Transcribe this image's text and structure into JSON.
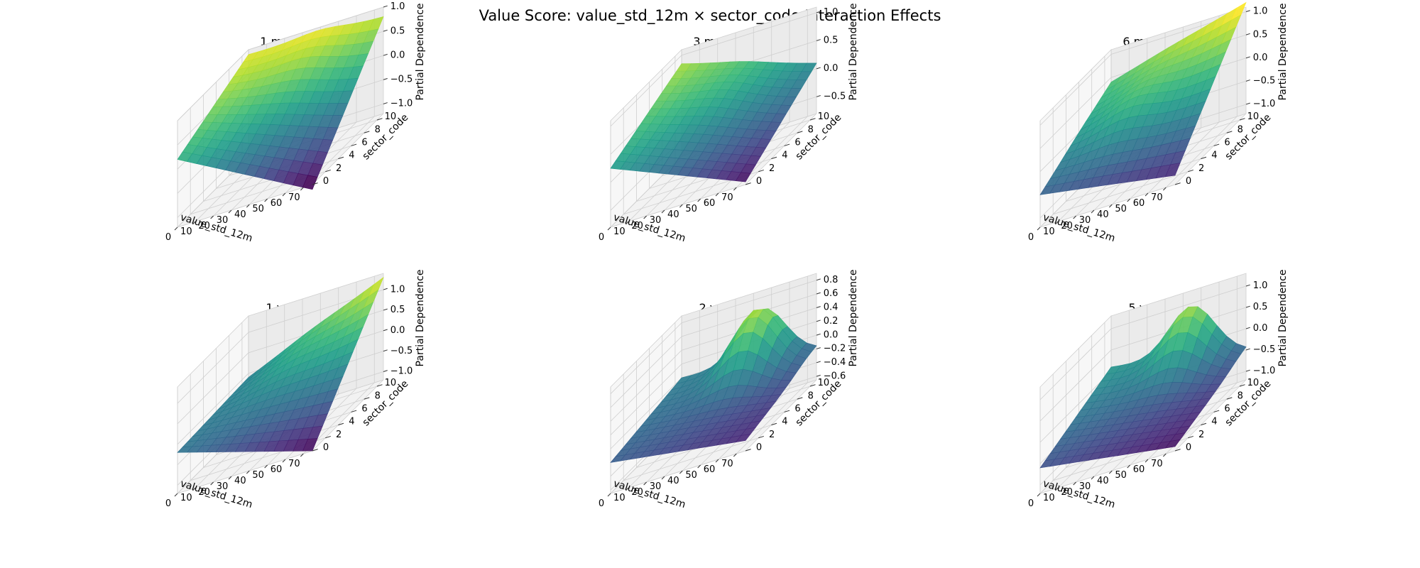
{
  "title": "Value Score: value_std_12m × sector_code Interaction Effects",
  "chart_data": {
    "type": "surface3d",
    "suptitle": "Value Score: value_std_12m × sector_code Interaction Effects",
    "xlabel": "value_std_12m",
    "ylabel": "sector_code",
    "zlabel": "Partial Dependence",
    "colormap": "viridis",
    "x_ticks": [
      0,
      10,
      20,
      30,
      40,
      50,
      60,
      70
    ],
    "y_ticks": [
      0,
      2,
      4,
      6,
      8,
      10
    ],
    "xlim": [
      0,
      75
    ],
    "ylim": [
      0,
      11
    ],
    "panels": [
      {
        "title": "1 month",
        "z_ticks": [
          "1.0",
          "0.5",
          "0.0",
          "−0.5",
          "−1.0"
        ],
        "zlim": [
          -1.2,
          1.0
        ],
        "corners": {
          "x0y11": 0.9,
          "x75y11": 0.8,
          "x0y0": 0.2,
          "x75y0": -1.3
        },
        "bump": {
          "x": 40,
          "y": 9,
          "amp": 0.15
        }
      },
      {
        "title": "3 month",
        "z_ticks": [
          "1.0",
          "0.5",
          "0.0",
          "−0.5"
        ],
        "zlim": [
          -0.8,
          1.1
        ],
        "corners": {
          "x0y11": 0.85,
          "x75y11": 0.1,
          "x0y0": 0.25,
          "x75y0": -0.75
        },
        "bump": {
          "x": 35,
          "y": 8,
          "amp": 0.1
        }
      },
      {
        "title": "6 month",
        "z_ticks": [
          "1.0",
          "0.5",
          "0.0",
          "−0.5",
          "−1.0"
        ],
        "zlim": [
          -1.2,
          1.1
        ],
        "corners": {
          "x0y11": 0.4,
          "x75y11": 1.2,
          "x0y0": -0.5,
          "x75y0": -1.0
        },
        "bump": {
          "x": 30,
          "y": 6,
          "amp": 0.25
        }
      },
      {
        "title": "1 year",
        "z_ticks": [
          "1.0",
          "0.5",
          "0.0",
          "−0.5",
          "−1.0"
        ],
        "zlim": [
          -1.2,
          1.4
        ],
        "corners": {
          "x0y11": -0.1,
          "x75y11": 1.3,
          "x0y0": -0.2,
          "x75y0": -1.2
        },
        "bump": {
          "x": 35,
          "y": 8,
          "amp": 0.1
        }
      },
      {
        "title": "2 year",
        "z_ticks": [
          "0.8",
          "0.6",
          "0.4",
          "0.2",
          "0.0",
          "−0.2",
          "−0.4",
          "−0.6"
        ],
        "zlim": [
          -0.65,
          0.9
        ],
        "corners": {
          "x0y11": 0.0,
          "x75y11": -0.2,
          "x0y0": -0.2,
          "x75y0": -0.5
        },
        "bump": {
          "x": 45,
          "y": 10,
          "amp": 0.85
        }
      },
      {
        "title": "5 year",
        "z_ticks": [
          "1.0",
          "0.5",
          "0.0",
          "−0.5",
          "−1.0"
        ],
        "zlim": [
          -1.2,
          1.3
        ],
        "corners": {
          "x0y11": 0.1,
          "x75y11": -0.5,
          "x0y0": -0.6,
          "x75y0": -1.1
        },
        "bump": {
          "x": 45,
          "y": 11,
          "amp": 1.2
        }
      }
    ]
  }
}
